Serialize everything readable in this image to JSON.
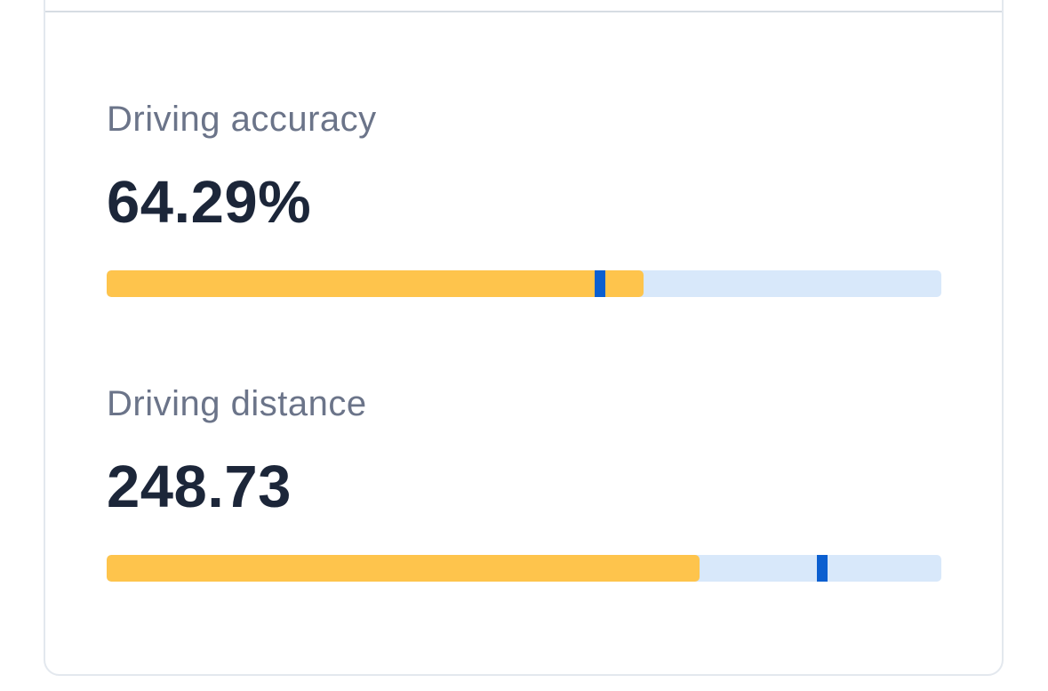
{
  "stats": {
    "driving_accuracy": {
      "label": "Driving accuracy",
      "value": "64.29%",
      "fill_fraction": 0.643,
      "marker_fraction": 0.591
    },
    "driving_distance": {
      "label": "Driving distance",
      "value": "248.73",
      "fill_fraction": 0.71,
      "marker_fraction": 0.857
    }
  },
  "colors": {
    "fill": "#fec44c",
    "track": "#d8e8fa",
    "marker": "#0b5fd0",
    "label": "#6b7489",
    "value": "#1c2639"
  }
}
